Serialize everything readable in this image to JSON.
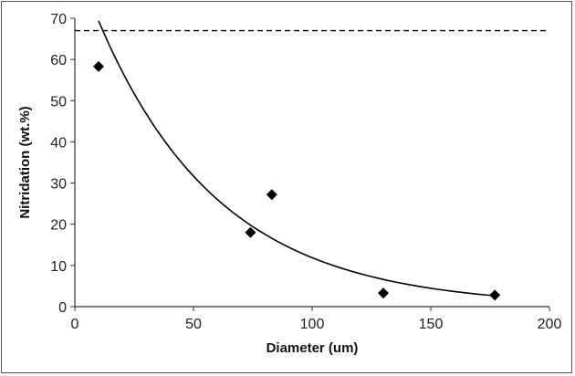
{
  "chart_data": {
    "type": "scatter",
    "xlabel": "Diameter (um)",
    "ylabel": "Nitridation (wt.%)",
    "xlim": [
      0,
      200
    ],
    "ylim": [
      0,
      70
    ],
    "xticks": [
      "0",
      "50",
      "100",
      "150",
      "200"
    ],
    "yticks": [
      "0",
      "10",
      "20",
      "30",
      "40",
      "50",
      "60",
      "70"
    ],
    "grid": false,
    "legend": "none",
    "series": [
      {
        "marker": "diamond",
        "color": "#000000",
        "x": [
          10,
          74,
          83,
          130,
          177
        ],
        "y": [
          58.3,
          18.0,
          27.2,
          3.3,
          2.8
        ]
      }
    ],
    "trendline": {
      "type": "exponential",
      "color": "#000000",
      "x_range": [
        10,
        177
      ],
      "a": 84.4,
      "b": -0.0196
    },
    "reference_line": {
      "style": "dashed",
      "color": "#000000",
      "y": 67
    }
  }
}
